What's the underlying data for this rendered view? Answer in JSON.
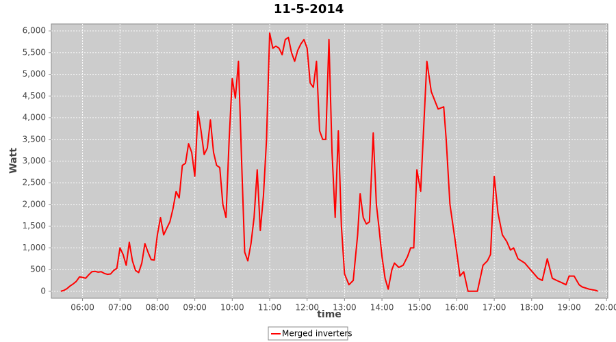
{
  "chart_data": {
    "type": "line",
    "title": "11-5-2014",
    "x_label": "time",
    "y_label": "Watt",
    "x": [
      "05:25",
      "05:30",
      "05:35",
      "05:40",
      "05:45",
      "05:50",
      "05:55",
      "06:00",
      "06:05",
      "06:10",
      "06:15",
      "06:20",
      "06:25",
      "06:30",
      "06:35",
      "06:40",
      "06:45",
      "06:50",
      "06:55",
      "07:00",
      "07:05",
      "07:10",
      "07:15",
      "07:20",
      "07:25",
      "07:30",
      "07:35",
      "07:40",
      "07:45",
      "07:50",
      "07:55",
      "08:00",
      "08:05",
      "08:10",
      "08:15",
      "08:20",
      "08:25",
      "08:30",
      "08:35",
      "08:40",
      "08:45",
      "08:50",
      "08:55",
      "09:00",
      "09:05",
      "09:10",
      "09:15",
      "09:20",
      "09:25",
      "09:30",
      "09:35",
      "09:40",
      "09:45",
      "09:50",
      "09:55",
      "10:00",
      "10:05",
      "10:10",
      "10:15",
      "10:20",
      "10:25",
      "10:30",
      "10:35",
      "10:40",
      "10:45",
      "10:50",
      "10:55",
      "11:00",
      "11:05",
      "11:10",
      "11:15",
      "11:20",
      "11:25",
      "11:30",
      "11:35",
      "11:40",
      "11:45",
      "11:50",
      "11:55",
      "12:00",
      "12:05",
      "12:10",
      "12:15",
      "12:20",
      "12:25",
      "12:30",
      "12:35",
      "12:40",
      "12:45",
      "12:50",
      "12:55",
      "13:00",
      "13:07",
      "13:14",
      "13:21",
      "13:25",
      "13:30",
      "13:35",
      "13:40",
      "13:46",
      "13:51",
      "13:55",
      "14:00",
      "14:05",
      "14:10",
      "14:16",
      "14:20",
      "14:27",
      "14:34",
      "14:41",
      "14:46",
      "14:51",
      "14:56",
      "15:02",
      "15:06",
      "15:12",
      "15:19",
      "15:30",
      "15:39",
      "15:43",
      "15:49",
      "15:57",
      "16:05",
      "16:11",
      "16:18",
      "16:33",
      "16:42",
      "16:49",
      "16:54",
      "17:00",
      "17:06",
      "17:13",
      "17:20",
      "17:26",
      "17:31",
      "17:38",
      "17:49",
      "17:55",
      "18:01",
      "18:10",
      "18:17",
      "18:25",
      "18:33",
      "18:40",
      "18:48",
      "18:55",
      "19:00",
      "19:08",
      "19:16",
      "19:21",
      "19:32",
      "19:43",
      "19:46"
    ],
    "series": [
      {
        "name": "Merged inverters",
        "color": "#ff0000",
        "values": [
          0,
          20,
          60,
          120,
          170,
          230,
          330,
          320,
          300,
          380,
          450,
          460,
          440,
          450,
          410,
          390,
          400,
          480,
          530,
          1000,
          850,
          600,
          1130,
          700,
          480,
          430,
          650,
          1100,
          900,
          730,
          720,
          1300,
          1700,
          1300,
          1450,
          1600,
          1900,
          2300,
          2150,
          2900,
          2950,
          3400,
          3200,
          2650,
          4150,
          3700,
          3150,
          3300,
          3950,
          3200,
          2900,
          2850,
          2000,
          1700,
          3500,
          4900,
          4450,
          5300,
          3000,
          900,
          700,
          1100,
          1700,
          2800,
          1400,
          2200,
          3500,
          5950,
          5600,
          5650,
          5600,
          5450,
          5800,
          5850,
          5500,
          5300,
          5550,
          5700,
          5800,
          5600,
          4800,
          4700,
          5300,
          3700,
          3500,
          3500,
          5800,
          3200,
          1700,
          3700,
          1500,
          400,
          150,
          250,
          1300,
          2250,
          1700,
          1550,
          1600,
          3650,
          2000,
          1500,
          800,
          300,
          50,
          500,
          650,
          550,
          600,
          800,
          1000,
          1000,
          2800,
          2300,
          3500,
          5300,
          4600,
          4200,
          4250,
          3500,
          2000,
          1200,
          350,
          450,
          0,
          0,
          600,
          700,
          850,
          2650,
          1800,
          1300,
          1150,
          950,
          1000,
          750,
          650,
          550,
          450,
          300,
          250,
          750,
          300,
          250,
          200,
          150,
          350,
          350,
          150,
          100,
          50,
          20,
          0
        ]
      }
    ],
    "xlim": [
      "05:10",
      "20:02"
    ],
    "xticks": [
      "06:00",
      "07:00",
      "08:00",
      "09:00",
      "10:00",
      "11:00",
      "12:00",
      "13:00",
      "14:00",
      "15:00",
      "16:00",
      "17:00",
      "18:00",
      "19:00",
      "20:00"
    ],
    "ylim": [
      -160,
      6160
    ],
    "yticks": [
      0,
      500,
      {
        "value": 1000,
        "label": "1,000"
      },
      {
        "value": 1500,
        "label": "1,500"
      },
      {
        "value": 2000,
        "label": "2,000"
      },
      {
        "value": 2500,
        "label": "2,500"
      },
      {
        "value": 3000,
        "label": "3,000"
      },
      {
        "value": 3500,
        "label": "3,500"
      },
      {
        "value": 4000,
        "label": "4,000"
      },
      {
        "value": 4500,
        "label": "4,500"
      },
      {
        "value": 5000,
        "label": "5,000"
      },
      {
        "value": 5500,
        "label": "5,500"
      },
      {
        "value": 6000,
        "label": "6,000"
      }
    ],
    "grid": true
  }
}
